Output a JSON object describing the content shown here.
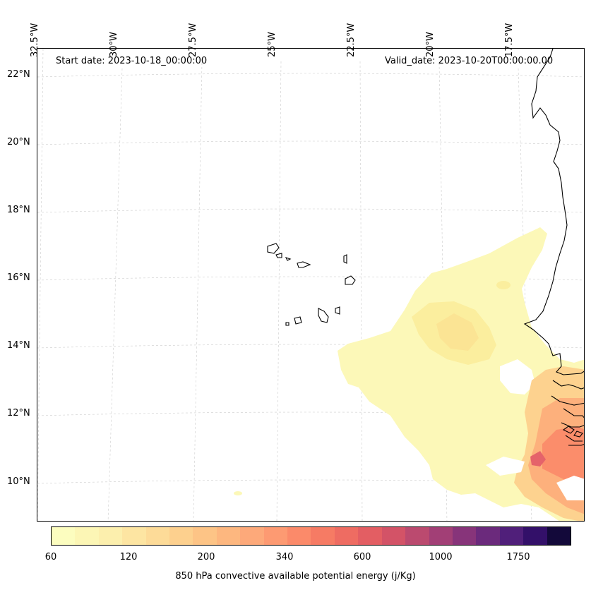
{
  "map": {
    "start_label": "Start date: 2023-10-18_00:00:00",
    "valid_label": "Valid_date: 2023-10-20T00:00:00.00",
    "lon_labels": [
      "32.5°W",
      "30°W",
      "27.5°W",
      "25°W",
      "22.5°W",
      "20°W",
      "17.5°W"
    ],
    "lat_labels": [
      "22°N",
      "20°N",
      "18°N",
      "16°N",
      "14°N",
      "12°N",
      "10°N"
    ],
    "extent": {
      "lon_min": -33.0,
      "lon_max": -15.0,
      "lat_min": 8.9,
      "lat_max": 22.8
    },
    "coastline_color": "#000000",
    "gridline_color": "#cccccc"
  },
  "colorbar": {
    "label": "850 hPa convective available potential energy (j/Kg)",
    "ticks": [
      "60",
      "120",
      "200",
      "340",
      "600",
      "1000",
      "1750"
    ],
    "colors": [
      "#fcfdbf",
      "#fcf6b5",
      "#fcefad",
      "#fde5a2",
      "#fddb98",
      "#fdd08e",
      "#fdc486",
      "#fdb77f",
      "#fda97a",
      "#fd9a72",
      "#fb8a6a",
      "#f67b64",
      "#ee6c62",
      "#e35e63",
      "#d35367",
      "#bb4a6f",
      "#a23f76",
      "#87347a",
      "#6b2a7c",
      "#501f7a",
      "#331069",
      "#13093a"
    ],
    "tick_positions": [
      0,
      3,
      6,
      9,
      12,
      15,
      18
    ]
  }
}
